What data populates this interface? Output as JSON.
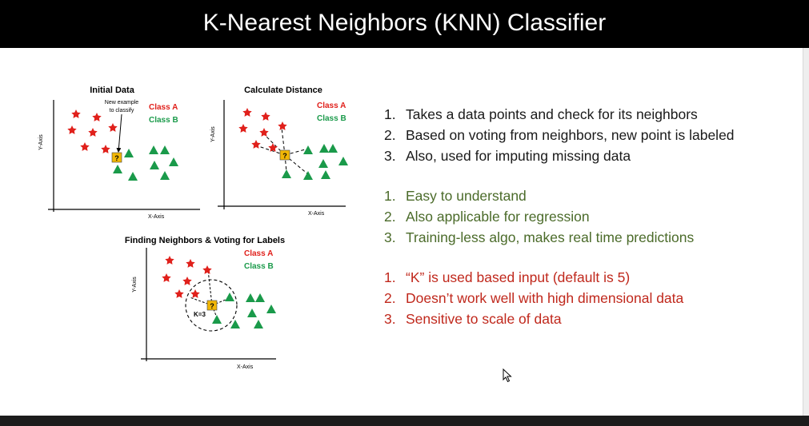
{
  "slide": {
    "title": "K-Nearest Neighbors (KNN) Classifier"
  },
  "diagrams": {
    "initial": {
      "title": "Initial Data",
      "new_example_line1": "New example",
      "new_example_line2": "to classify",
      "class_a": "Class A",
      "class_b": "Class B",
      "x_axis": "X-Axis",
      "y_axis": "Y-Axis",
      "marker": "?"
    },
    "distance": {
      "title": "Calculate Distance",
      "class_a": "Class A",
      "class_b": "Class B",
      "x_axis": "X-Axis",
      "y_axis": "Y-Axis",
      "marker": "?"
    },
    "voting": {
      "title": "Finding Neighbors & Voting for Labels",
      "class_a": "Class A",
      "class_b": "Class B",
      "x_axis": "X-Axis",
      "y_axis": "Y-Axis",
      "k_label": "K=3",
      "marker": "?"
    }
  },
  "lists": {
    "description": [
      {
        "num": "1.",
        "text": "Takes a data points and check for its neighbors"
      },
      {
        "num": "2.",
        "text": "Based on voting from neighbors, new point is labeled"
      },
      {
        "num": "3.",
        "text": "Also, used for imputing missing data"
      }
    ],
    "pros": [
      {
        "num": "1.",
        "text": "Easy to understand"
      },
      {
        "num": "2.",
        "text": "Also applicable for regression"
      },
      {
        "num": "3.",
        "text": "Training-less algo, makes real time predictions"
      }
    ],
    "cons": [
      {
        "num": "1.",
        "text": "“K” is used based input (default is 5)"
      },
      {
        "num": "2.",
        "text": "Doesn’t work well with high dimensional data"
      },
      {
        "num": "3.",
        "text": "Sensitive to scale of data"
      }
    ]
  },
  "colors": {
    "class_a": "#e0201b",
    "class_b": "#1a9a4a",
    "marker": "#f2b705",
    "pros": "#4b6b2a",
    "cons": "#c0281c"
  },
  "icons": {
    "class_a_marker": "star-icon",
    "class_b_marker": "triangle-icon",
    "cursor": "mouse-cursor-icon"
  }
}
